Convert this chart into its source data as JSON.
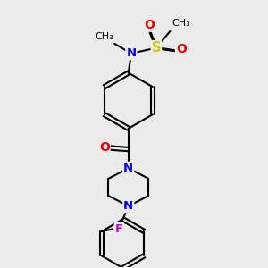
{
  "bg_color": "#ebebeb",
  "bond_color": "#000000",
  "N_color": "#0000ee",
  "O_color": "#ee0000",
  "S_color": "#cccc00",
  "F_color": "#cc00cc",
  "line_width": 1.5,
  "font_size": 9.5,
  "xlim": [
    0.05,
    0.95
  ],
  "ylim": [
    0.02,
    0.98
  ]
}
